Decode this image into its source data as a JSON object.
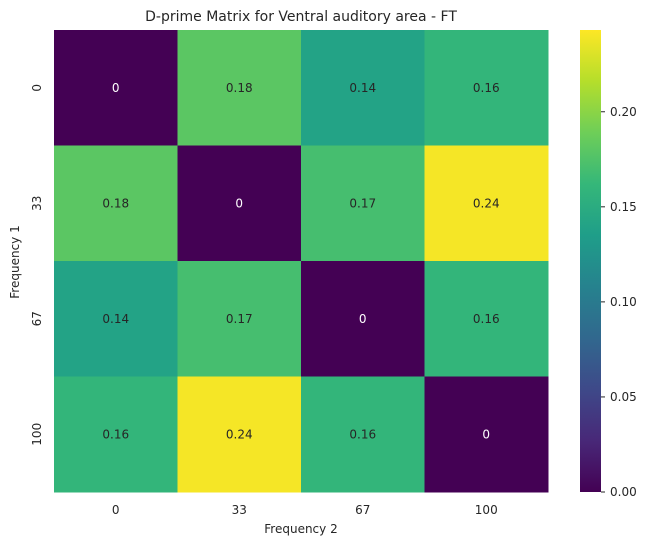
{
  "chart_data": {
    "type": "heatmap",
    "title": "D-prime Matrix for Ventral auditory area - FT",
    "xlabel": "Frequency 2",
    "ylabel": "Frequency 1",
    "x_categories": [
      "0",
      "33",
      "67",
      "100"
    ],
    "y_categories": [
      "0",
      "33",
      "67",
      "100"
    ],
    "values": [
      [
        0,
        0.18,
        0.14,
        0.16
      ],
      [
        0.18,
        0,
        0.17,
        0.24
      ],
      [
        0.14,
        0.17,
        0,
        0.16
      ],
      [
        0.16,
        0.24,
        0.16,
        0
      ]
    ],
    "cell_labels": [
      [
        "0",
        "0.18",
        "0.14",
        "0.16"
      ],
      [
        "0.18",
        "0",
        "0.17",
        "0.24"
      ],
      [
        "0.14",
        "0.17",
        "0",
        "0.16"
      ],
      [
        "0.16",
        "0.24",
        "0.16",
        "0"
      ]
    ],
    "colormap": "viridis",
    "color_range": [
      0,
      0.243
    ],
    "colorbar_ticks": [
      "0.00",
      "0.05",
      "0.10",
      "0.15",
      "0.20"
    ],
    "colorbar_tick_values": [
      0,
      0.05,
      0.1,
      0.15,
      0.2
    ],
    "grid": false,
    "legend": "colorbar-right"
  }
}
